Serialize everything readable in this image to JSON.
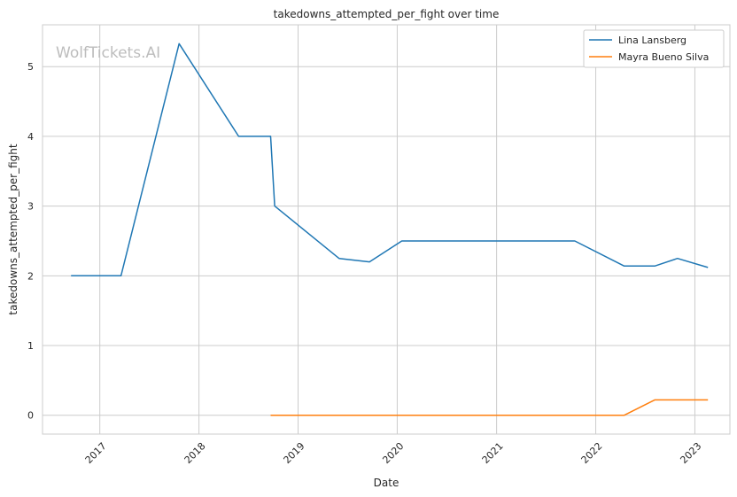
{
  "watermark": "WolfTickets.AI",
  "chart_data": {
    "type": "line",
    "title": "takedowns_attempted_per_fight over time",
    "xlabel": "Date",
    "ylabel": "takedowns_attempted_per_fight",
    "x_ticks": [
      "2017",
      "2018",
      "2019",
      "2020",
      "2021",
      "2022",
      "2023"
    ],
    "y_ticks": [
      0,
      1,
      2,
      3,
      4,
      5
    ],
    "ylim": [
      -0.27,
      5.6
    ],
    "xlim": [
      "2016-06-04",
      "2023-05-10"
    ],
    "grid": true,
    "legend_position": "top-right",
    "series": [
      {
        "name": "Lina Lansberg",
        "color": "#1f77b4",
        "points": [
          {
            "x": "2016-09-17",
            "y": 2.0
          },
          {
            "x": "2017-03-20",
            "y": 2.0
          },
          {
            "x": "2017-10-20",
            "y": 5.33
          },
          {
            "x": "2018-05-27",
            "y": 4.0
          },
          {
            "x": "2018-09-22",
            "y": 4.0
          },
          {
            "x": "2018-10-07",
            "y": 3.0
          },
          {
            "x": "2019-06-01",
            "y": 2.25
          },
          {
            "x": "2019-09-21",
            "y": 2.2
          },
          {
            "x": "2020-01-18",
            "y": 2.5
          },
          {
            "x": "2021-10-16",
            "y": 2.5
          },
          {
            "x": "2022-04-16",
            "y": 2.14
          },
          {
            "x": "2022-08-06",
            "y": 2.14
          },
          {
            "x": "2022-10-29",
            "y": 2.25
          },
          {
            "x": "2023-02-18",
            "y": 2.12
          }
        ]
      },
      {
        "name": "Mayra Bueno Silva",
        "color": "#ff7f0e",
        "points": [
          {
            "x": "2018-09-22",
            "y": 0.0
          },
          {
            "x": "2022-04-16",
            "y": 0.0
          },
          {
            "x": "2022-08-06",
            "y": 0.22
          },
          {
            "x": "2023-02-18",
            "y": 0.22
          }
        ]
      }
    ]
  }
}
